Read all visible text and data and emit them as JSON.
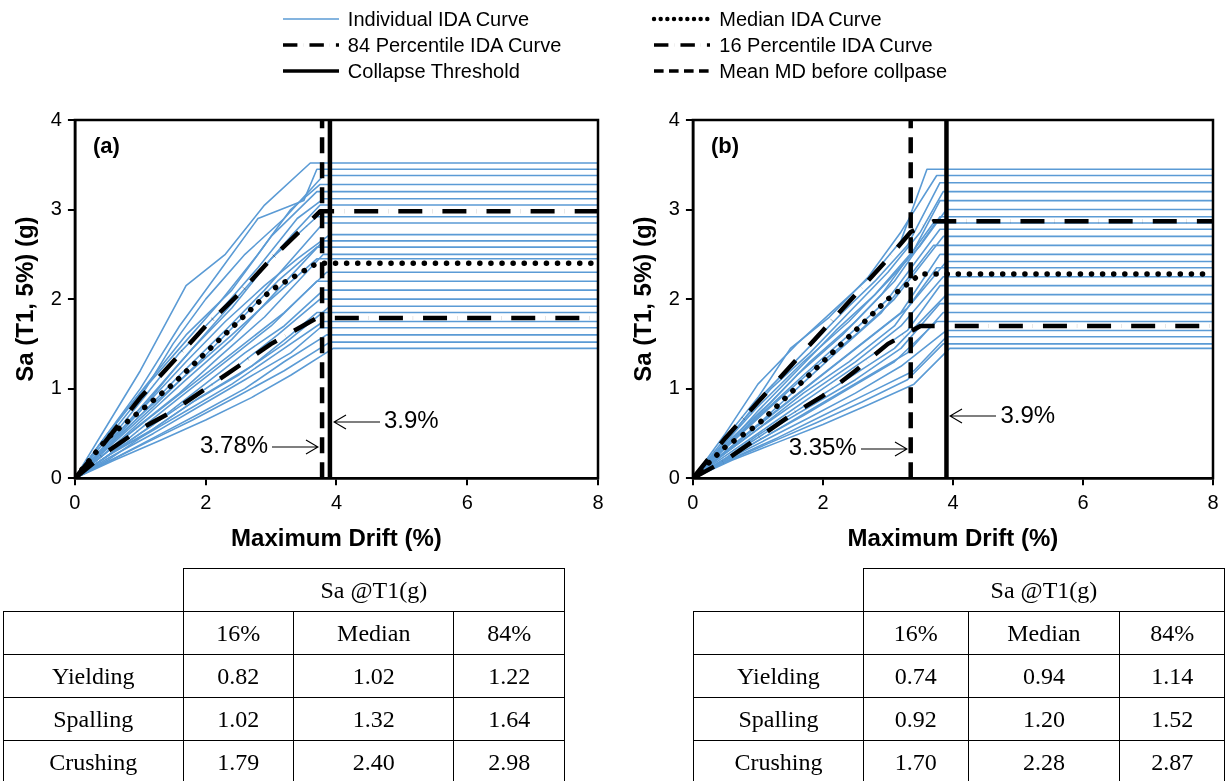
{
  "chart_data": [
    {
      "type": "line",
      "title": "(a)",
      "xlabel": "Maximum Drift (%)",
      "ylabel": "Sa (T1, 5%) (g)",
      "xlim": [
        0,
        8
      ],
      "ylim": [
        0,
        4
      ],
      "xticks": [
        0,
        2,
        4,
        6,
        8
      ],
      "yticks": [
        0,
        1,
        2,
        3,
        4
      ],
      "grid": false,
      "legend": "top",
      "marker": "none",
      "annotations": [
        {
          "text": "3.9%",
          "x": 3.9,
          "y": 0.63
        },
        {
          "text": "3.78%",
          "x": 3.78,
          "y": 0.35
        }
      ],
      "series": [
        {
          "name": "Individual IDA Curve",
          "color": "#5b9bd5",
          "x": [
            0,
            0.5,
            1,
            1.7,
            2.3,
            2.9,
            3.6,
            8
          ],
          "values": [
            0,
            0.6,
            1.2,
            2.15,
            2.5,
            3.05,
            3.52,
            3.52
          ]
        },
        {
          "color": "#5b9bd5",
          "x": [
            0,
            0.5,
            1,
            1.6,
            2.2,
            2.8,
            3.5,
            3.7,
            8
          ],
          "values": [
            0,
            0.5,
            1.0,
            1.7,
            2.3,
            2.9,
            3.1,
            3.45,
            3.45
          ]
        },
        {
          "color": "#5b9bd5",
          "x": [
            0,
            0.5,
            1,
            1.5,
            2,
            2.6,
            3.2,
            3.8,
            8
          ],
          "values": [
            0,
            0.45,
            0.9,
            1.5,
            2.0,
            2.5,
            2.9,
            3.38,
            3.38
          ]
        },
        {
          "color": "#5b9bd5",
          "x": [
            0,
            0.4,
            1,
            1.6,
            2.2,
            2.8,
            3.3,
            3.75,
            8
          ],
          "values": [
            0,
            0.4,
            0.95,
            1.45,
            1.95,
            2.5,
            3.0,
            3.28,
            3.28
          ]
        },
        {
          "color": "#5b9bd5",
          "x": [
            0,
            0.5,
            1.1,
            1.7,
            2.4,
            3,
            3.7,
            8
          ],
          "values": [
            0,
            0.5,
            1.05,
            1.6,
            2.1,
            2.7,
            3.2,
            3.2
          ]
        },
        {
          "color": "#5b9bd5",
          "x": [
            0,
            0.5,
            1,
            1.6,
            2.2,
            2.8,
            3.4,
            3.8,
            8
          ],
          "values": [
            0,
            0.4,
            0.85,
            1.4,
            1.85,
            2.35,
            2.9,
            3.12,
            3.12
          ]
        },
        {
          "color": "#5b9bd5",
          "x": [
            0,
            0.5,
            1,
            1.5,
            2.1,
            2.7,
            3.3,
            3.75,
            8
          ],
          "values": [
            0,
            0.35,
            0.75,
            1.2,
            1.7,
            2.2,
            2.7,
            3.05,
            3.05
          ]
        },
        {
          "color": "#5b9bd5",
          "x": [
            0,
            0.6,
            1.2,
            1.8,
            2.4,
            3,
            3.7,
            8
          ],
          "values": [
            0,
            0.45,
            0.95,
            1.45,
            1.9,
            2.45,
            2.92,
            2.92
          ]
        },
        {
          "color": "#5b9bd5",
          "x": [
            0,
            0.5,
            1,
            1.6,
            2.3,
            2.9,
            3.8,
            8
          ],
          "values": [
            0,
            0.35,
            0.7,
            1.15,
            1.65,
            2.1,
            2.85,
            2.85
          ]
        },
        {
          "color": "#5b9bd5",
          "x": [
            0,
            0.5,
            1,
            1.7,
            2.3,
            2.9,
            3.4,
            3.9,
            8
          ],
          "values": [
            0,
            0.4,
            0.75,
            1.3,
            1.75,
            2.15,
            2.45,
            2.72,
            2.72
          ]
        },
        {
          "color": "#5b9bd5",
          "x": [
            0,
            0.5,
            1.1,
            1.7,
            2.4,
            3.1,
            3.8,
            8
          ],
          "values": [
            0,
            0.3,
            0.7,
            1.1,
            1.55,
            2.1,
            2.65,
            2.65
          ]
        },
        {
          "color": "#5b9bd5",
          "x": [
            0,
            0.6,
            1.2,
            1.9,
            2.5,
            3.1,
            3.7,
            8
          ],
          "values": [
            0,
            0.4,
            0.8,
            1.3,
            1.75,
            2.2,
            2.58,
            2.58
          ]
        },
        {
          "color": "#5b9bd5",
          "x": [
            0,
            0.5,
            1,
            1.6,
            2.2,
            2.9,
            3.8,
            8
          ],
          "values": [
            0,
            0.3,
            0.6,
            0.95,
            1.35,
            1.8,
            2.5,
            2.5
          ]
        },
        {
          "color": "#5b9bd5",
          "x": [
            0,
            0.5,
            1,
            1.7,
            2.4,
            3,
            3.7,
            8
          ],
          "values": [
            0,
            0.35,
            0.7,
            1.15,
            1.6,
            2.0,
            2.45,
            2.45
          ]
        },
        {
          "color": "#5b9bd5",
          "x": [
            0,
            0.5,
            1.1,
            1.8,
            2.5,
            3.2,
            3.85,
            8
          ],
          "values": [
            0,
            0.3,
            0.65,
            1.05,
            1.45,
            1.85,
            2.3,
            2.3
          ]
        },
        {
          "color": "#5b9bd5",
          "x": [
            0,
            0.5,
            1,
            1.6,
            2.3,
            3,
            3.7,
            8
          ],
          "values": [
            0,
            0.25,
            0.55,
            0.9,
            1.3,
            1.7,
            2.2,
            2.2
          ]
        },
        {
          "color": "#5b9bd5",
          "x": [
            0,
            0.6,
            1.2,
            1.9,
            2.6,
            3.2,
            3.8,
            8
          ],
          "values": [
            0,
            0.3,
            0.6,
            1.0,
            1.4,
            1.7,
            2.1,
            2.1
          ]
        },
        {
          "color": "#5b9bd5",
          "x": [
            0,
            0.5,
            1,
            1.7,
            2.4,
            3.1,
            3.75,
            8
          ],
          "values": [
            0,
            0.25,
            0.5,
            0.85,
            1.2,
            1.6,
            2.0,
            2.0
          ]
        },
        {
          "color": "#5b9bd5",
          "x": [
            0,
            0.5,
            1.1,
            1.8,
            2.5,
            3.2,
            3.9,
            8
          ],
          "values": [
            0,
            0.25,
            0.5,
            0.85,
            1.15,
            1.5,
            1.92,
            1.92
          ]
        },
        {
          "color": "#5b9bd5",
          "x": [
            0,
            0.6,
            1.2,
            1.9,
            2.7,
            3.3,
            3.7,
            8
          ],
          "values": [
            0,
            0.3,
            0.55,
            0.9,
            1.25,
            1.6,
            1.85,
            1.85
          ]
        },
        {
          "color": "#5b9bd5",
          "x": [
            0,
            0.5,
            1,
            1.7,
            2.4,
            3.1,
            3.8,
            8
          ],
          "values": [
            0,
            0.2,
            0.45,
            0.75,
            1.05,
            1.4,
            1.75,
            1.75
          ]
        },
        {
          "color": "#5b9bd5",
          "x": [
            0,
            0.5,
            1.2,
            1.9,
            2.6,
            3.3,
            3.75,
            8
          ],
          "values": [
            0,
            0.22,
            0.5,
            0.8,
            1.1,
            1.4,
            1.68,
            1.68
          ]
        },
        {
          "color": "#5b9bd5",
          "x": [
            0,
            0.6,
            1.2,
            1.9,
            2.6,
            3.2,
            3.85,
            8
          ],
          "values": [
            0,
            0.22,
            0.45,
            0.72,
            1.0,
            1.3,
            1.6,
            1.6
          ]
        },
        {
          "color": "#5b9bd5",
          "x": [
            0,
            0.5,
            1.1,
            1.8,
            2.5,
            3.2,
            3.9,
            8
          ],
          "values": [
            0,
            0.18,
            0.4,
            0.65,
            0.92,
            1.2,
            1.52,
            1.52
          ]
        },
        {
          "color": "#5b9bd5",
          "x": [
            0,
            0.6,
            1.3,
            2,
            2.7,
            3.3,
            3.95,
            8
          ],
          "values": [
            0,
            0.2,
            0.42,
            0.65,
            0.9,
            1.15,
            1.45,
            1.45
          ]
        },
        {
          "name": "84 Percentile IDA Curve",
          "color": "#000000",
          "line_style": "dashdot",
          "x": [
            0,
            0.4,
            1,
            1.5,
            2,
            2.5,
            3,
            3.5,
            3.75,
            8
          ],
          "values": [
            0,
            0.35,
            0.9,
            1.3,
            1.7,
            2.05,
            2.45,
            2.8,
            2.98,
            2.98
          ]
        },
        {
          "name": "Collapse Threshold",
          "color": "#000000",
          "line_style": "solid",
          "x": [
            3.9,
            3.9
          ],
          "values": [
            0,
            4
          ]
        },
        {
          "name": "Median IDA Curve",
          "color": "#000000",
          "line_style": "dotted",
          "x": [
            0,
            0.5,
            1,
            1.5,
            2,
            2.5,
            3,
            3.7,
            8
          ],
          "values": [
            0,
            0.45,
            0.75,
            1.05,
            1.4,
            1.75,
            2.1,
            2.4,
            2.4
          ]
        },
        {
          "name": "16 Percentile IDA Curve",
          "color": "#000000",
          "line_style": "dashdot",
          "x": [
            0,
            0.5,
            1,
            1.5,
            2,
            2.5,
            3,
            3.7,
            8
          ],
          "values": [
            0,
            0.3,
            0.55,
            0.75,
            1.0,
            1.25,
            1.5,
            1.79,
            1.79
          ]
        },
        {
          "name": "Mean MD before collpase",
          "color": "#000000",
          "line_style": "dashed",
          "x": [
            3.78,
            3.78
          ],
          "values": [
            0,
            4
          ]
        }
      ]
    },
    {
      "type": "line",
      "title": "(b)",
      "xlabel": "Maximum Drift (%)",
      "ylabel": "Sa (T1, 5%) (g)",
      "xlim": [
        0,
        8
      ],
      "ylim": [
        0,
        4
      ],
      "xticks": [
        0,
        2,
        4,
        6,
        8
      ],
      "yticks": [
        0,
        1,
        2,
        3,
        4
      ],
      "grid": false,
      "marker": "none",
      "annotations": [
        {
          "text": "3.9%",
          "x": 3.9,
          "y": 0.69
        },
        {
          "text": "3.35%",
          "x": 3.35,
          "y": 0.33
        }
      ],
      "series": [
        {
          "color": "#5b9bd5",
          "x": [
            0,
            0.5,
            1,
            1.6,
            2.2,
            2.8,
            3.2,
            3.6,
            8
          ],
          "values": [
            0,
            0.5,
            1.05,
            1.5,
            1.9,
            2.3,
            2.65,
            3.45,
            3.45
          ]
        },
        {
          "color": "#5b9bd5",
          "x": [
            0,
            0.5,
            1,
            1.5,
            2.1,
            2.7,
            3.2,
            3.75,
            8
          ],
          "values": [
            0,
            0.45,
            0.9,
            1.45,
            1.8,
            2.25,
            2.75,
            3.38,
            3.38
          ]
        },
        {
          "color": "#5b9bd5",
          "x": [
            0,
            0.5,
            1.1,
            1.7,
            2.3,
            2.8,
            3.3,
            3.8,
            8
          ],
          "values": [
            0,
            0.4,
            0.95,
            1.4,
            1.85,
            2.2,
            2.6,
            3.3,
            3.3
          ]
        },
        {
          "color": "#5b9bd5",
          "x": [
            0,
            0.6,
            1.2,
            1.8,
            2.4,
            3,
            3.5,
            3.85,
            8
          ],
          "values": [
            0,
            0.5,
            1.0,
            1.4,
            1.85,
            2.3,
            2.75,
            3.2,
            3.2
          ]
        },
        {
          "color": "#5b9bd5",
          "x": [
            0,
            0.5,
            1,
            1.6,
            2.2,
            2.8,
            3.4,
            3.8,
            8
          ],
          "values": [
            0,
            0.35,
            0.75,
            1.2,
            1.65,
            2.05,
            2.55,
            3.1,
            3.1
          ]
        },
        {
          "color": "#5b9bd5",
          "x": [
            0,
            0.5,
            1,
            1.7,
            2.4,
            3,
            3.5,
            3.9,
            8
          ],
          "values": [
            0,
            0.4,
            0.8,
            1.3,
            1.75,
            2.2,
            2.6,
            3.0,
            3.0
          ]
        },
        {
          "color": "#5b9bd5",
          "x": [
            0,
            0.6,
            1.2,
            1.8,
            2.5,
            3.1,
            3.8,
            8
          ],
          "values": [
            0,
            0.45,
            0.85,
            1.3,
            1.75,
            2.2,
            2.92,
            2.92
          ]
        },
        {
          "color": "#5b9bd5",
          "x": [
            0,
            0.5,
            1,
            1.6,
            2.3,
            2.9,
            3.7,
            8
          ],
          "values": [
            0,
            0.35,
            0.7,
            1.15,
            1.6,
            2.05,
            2.85,
            2.85
          ]
        },
        {
          "color": "#5b9bd5",
          "x": [
            0,
            0.5,
            1.1,
            1.7,
            2.4,
            3,
            3.8,
            8
          ],
          "values": [
            0,
            0.35,
            0.75,
            1.15,
            1.6,
            2.0,
            2.78,
            2.78
          ]
        },
        {
          "color": "#5b9bd5",
          "x": [
            0,
            0.6,
            1.2,
            1.9,
            2.5,
            3.1,
            3.85,
            8
          ],
          "values": [
            0,
            0.4,
            0.8,
            1.25,
            1.6,
            2.0,
            2.7,
            2.7
          ]
        },
        {
          "color": "#5b9bd5",
          "x": [
            0,
            0.5,
            1,
            1.6,
            2.2,
            2.9,
            3.7,
            8
          ],
          "values": [
            0,
            0.3,
            0.6,
            1.0,
            1.4,
            1.85,
            2.6,
            2.6
          ]
        },
        {
          "color": "#5b9bd5",
          "x": [
            0,
            0.5,
            1.1,
            1.8,
            2.5,
            3.2,
            3.8,
            8
          ],
          "values": [
            0,
            0.3,
            0.65,
            1.05,
            1.45,
            1.85,
            2.5,
            2.5
          ]
        },
        {
          "color": "#5b9bd5",
          "x": [
            0,
            0.6,
            1.2,
            1.9,
            2.6,
            3.3,
            3.9,
            8
          ],
          "values": [
            0,
            0.35,
            0.7,
            1.1,
            1.5,
            1.9,
            2.42,
            2.42
          ]
        },
        {
          "color": "#5b9bd5",
          "x": [
            0,
            0.5,
            1,
            1.7,
            2.4,
            3.1,
            3.75,
            8
          ],
          "values": [
            0,
            0.28,
            0.55,
            0.95,
            1.3,
            1.7,
            2.35,
            2.35
          ]
        },
        {
          "color": "#5b9bd5",
          "x": [
            0,
            0.5,
            1.1,
            1.8,
            2.5,
            3.2,
            3.85,
            8
          ],
          "values": [
            0,
            0.28,
            0.6,
            0.95,
            1.3,
            1.7,
            2.25,
            2.25
          ]
        },
        {
          "color": "#5b9bd5",
          "x": [
            0,
            0.6,
            1.2,
            1.9,
            2.6,
            3.3,
            3.8,
            8
          ],
          "values": [
            0,
            0.3,
            0.6,
            0.95,
            1.3,
            1.65,
            2.15,
            2.15
          ]
        },
        {
          "color": "#5b9bd5",
          "x": [
            0,
            0.5,
            1,
            1.7,
            2.4,
            3.1,
            3.9,
            8
          ],
          "values": [
            0,
            0.22,
            0.48,
            0.8,
            1.12,
            1.45,
            2.05,
            2.05
          ]
        },
        {
          "color": "#5b9bd5",
          "x": [
            0,
            0.5,
            1.1,
            1.8,
            2.5,
            3.2,
            3.8,
            8
          ],
          "values": [
            0,
            0.22,
            0.5,
            0.8,
            1.1,
            1.45,
            1.95,
            1.95
          ]
        },
        {
          "color": "#5b9bd5",
          "x": [
            0,
            0.6,
            1.2,
            1.9,
            2.6,
            3.3,
            3.85,
            8
          ],
          "values": [
            0,
            0.25,
            0.5,
            0.8,
            1.1,
            1.4,
            1.85,
            1.85
          ]
        },
        {
          "color": "#5b9bd5",
          "x": [
            0,
            0.5,
            1,
            1.7,
            2.4,
            3.1,
            3.75,
            8
          ],
          "values": [
            0,
            0.2,
            0.42,
            0.7,
            1.0,
            1.3,
            1.75,
            1.75
          ]
        },
        {
          "color": "#5b9bd5",
          "x": [
            0,
            0.5,
            1.1,
            1.8,
            2.5,
            3.2,
            3.9,
            8
          ],
          "values": [
            0,
            0.2,
            0.42,
            0.68,
            0.95,
            1.25,
            1.65,
            1.65
          ]
        },
        {
          "color": "#5b9bd5",
          "x": [
            0,
            0.6,
            1.3,
            2,
            2.7,
            3.4,
            3.9,
            8
          ],
          "values": [
            0,
            0.22,
            0.45,
            0.7,
            0.95,
            1.2,
            1.58,
            1.58
          ]
        },
        {
          "color": "#5b9bd5",
          "x": [
            0,
            0.5,
            1.2,
            1.9,
            2.6,
            3.3,
            3.85,
            8
          ],
          "values": [
            0,
            0.18,
            0.4,
            0.62,
            0.85,
            1.1,
            1.5,
            1.5
          ]
        },
        {
          "color": "#5b9bd5",
          "x": [
            0,
            0.6,
            1.3,
            2,
            2.7,
            3.4,
            3.95,
            8
          ],
          "values": [
            0,
            0.2,
            0.4,
            0.6,
            0.82,
            1.05,
            1.45,
            1.45
          ]
        },
        {
          "color": "#000000",
          "line_style": "dashdot",
          "x": [
            0,
            0.5,
            1,
            1.5,
            2,
            2.5,
            3,
            3.35,
            3.7,
            8
          ],
          "values": [
            0,
            0.45,
            0.85,
            1.25,
            1.65,
            2.05,
            2.45,
            2.75,
            2.87,
            2.87
          ]
        },
        {
          "color": "#000000",
          "line_style": "solid",
          "x": [
            3.9,
            3.9
          ],
          "values": [
            0,
            4
          ]
        },
        {
          "color": "#000000",
          "line_style": "dotted",
          "x": [
            0,
            0.5,
            1,
            1.5,
            2,
            2.5,
            3,
            3.5,
            8
          ],
          "values": [
            0,
            0.35,
            0.6,
            0.95,
            1.3,
            1.65,
            2.0,
            2.28,
            2.28
          ]
        },
        {
          "color": "#000000",
          "line_style": "dashdot",
          "x": [
            0,
            0.5,
            1,
            1.5,
            2,
            2.5,
            3,
            3.5,
            8
          ],
          "values": [
            0,
            0.2,
            0.45,
            0.7,
            0.92,
            1.2,
            1.5,
            1.7,
            1.7
          ]
        },
        {
          "color": "#000000",
          "line_style": "dashed",
          "x": [
            3.35,
            3.35
          ],
          "values": [
            0,
            4
          ]
        }
      ]
    },
    {
      "type": "heatmap",
      "title": "Sa @T1(g)",
      "categories": [
        "16%",
        "Median",
        "84%"
      ],
      "y_categories": [
        "Yielding",
        "Spalling",
        "Crushing"
      ],
      "cells": [
        [
          0.82,
          1.02,
          1.22
        ],
        [
          1.02,
          1.32,
          1.64
        ],
        [
          1.79,
          2.4,
          2.98
        ]
      ],
      "cell_labels": [
        [
          "0.82",
          "1.02",
          "1.22"
        ],
        [
          "1.02",
          "1.32",
          "1.64"
        ],
        [
          "1.79",
          "2.40",
          "2.98"
        ]
      ]
    },
    {
      "type": "heatmap",
      "title": "Sa @T1(g)",
      "categories": [
        "16%",
        "Median",
        "84%"
      ],
      "y_categories": [
        "Yielding",
        "Spalling",
        "Crushing"
      ],
      "cells": [
        [
          0.74,
          0.94,
          1.14
        ],
        [
          0.92,
          1.2,
          1.52
        ],
        [
          1.7,
          2.28,
          2.87
        ]
      ],
      "cell_labels": [
        [
          "0.74",
          "0.94",
          "1.14"
        ],
        [
          "0.92",
          "1.20",
          "1.52"
        ],
        [
          "1.70",
          "2.28",
          "2.87"
        ]
      ]
    }
  ]
}
